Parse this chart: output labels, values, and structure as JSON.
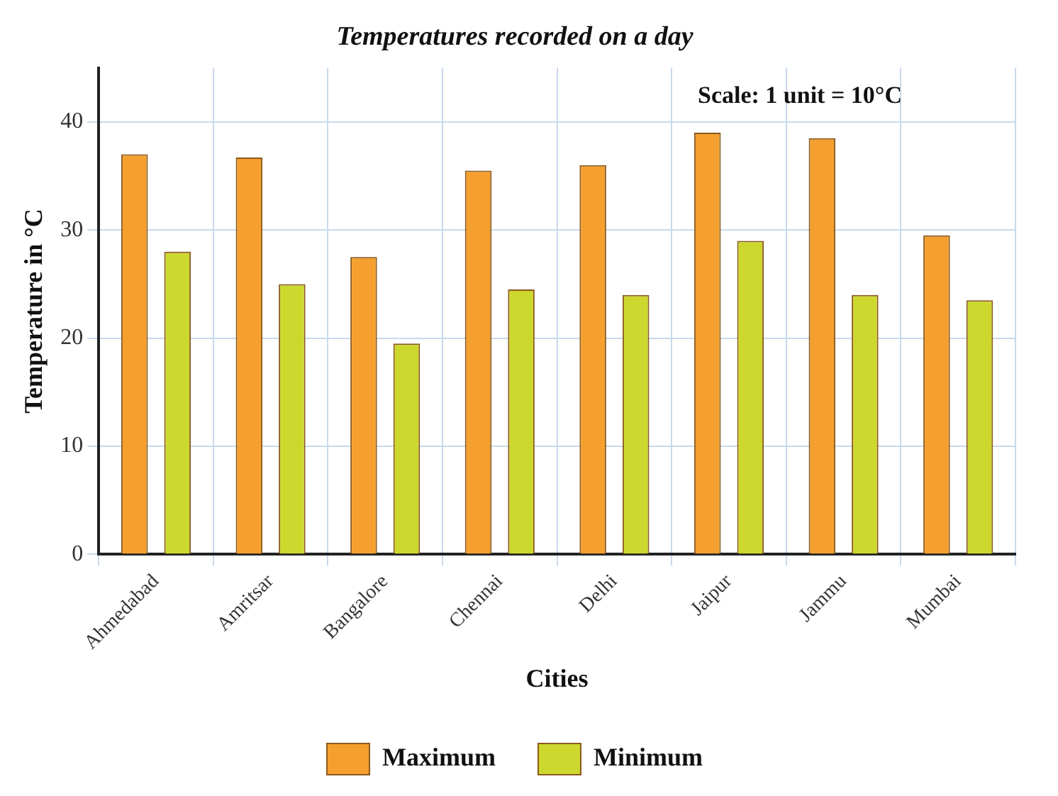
{
  "chart_data": {
    "type": "bar",
    "title": "Temperatures recorded on a day",
    "xlabel": "Cities",
    "ylabel": "Temperature in °C",
    "annotations": [
      "Scale: 1 unit = 10°C"
    ],
    "categories": [
      "Ahmedabad",
      "Amritsar",
      "Bangalore",
      "Chennai",
      "Delhi",
      "Jaipur",
      "Jammu",
      "Mumbai"
    ],
    "series": [
      {
        "name": "Maximum",
        "color": "#f5a02e",
        "values": [
          37,
          36.7,
          27.5,
          35.5,
          36,
          39,
          38.5,
          29.5
        ]
      },
      {
        "name": "Minimum",
        "color": "#cdd82e",
        "values": [
          28,
          25,
          19.5,
          24.5,
          24,
          29,
          24,
          23.5
        ]
      }
    ],
    "ylim": [
      0,
      45
    ],
    "yticks": [
      0,
      10,
      20,
      30,
      40
    ],
    "grid": true,
    "legend": "bottom"
  }
}
